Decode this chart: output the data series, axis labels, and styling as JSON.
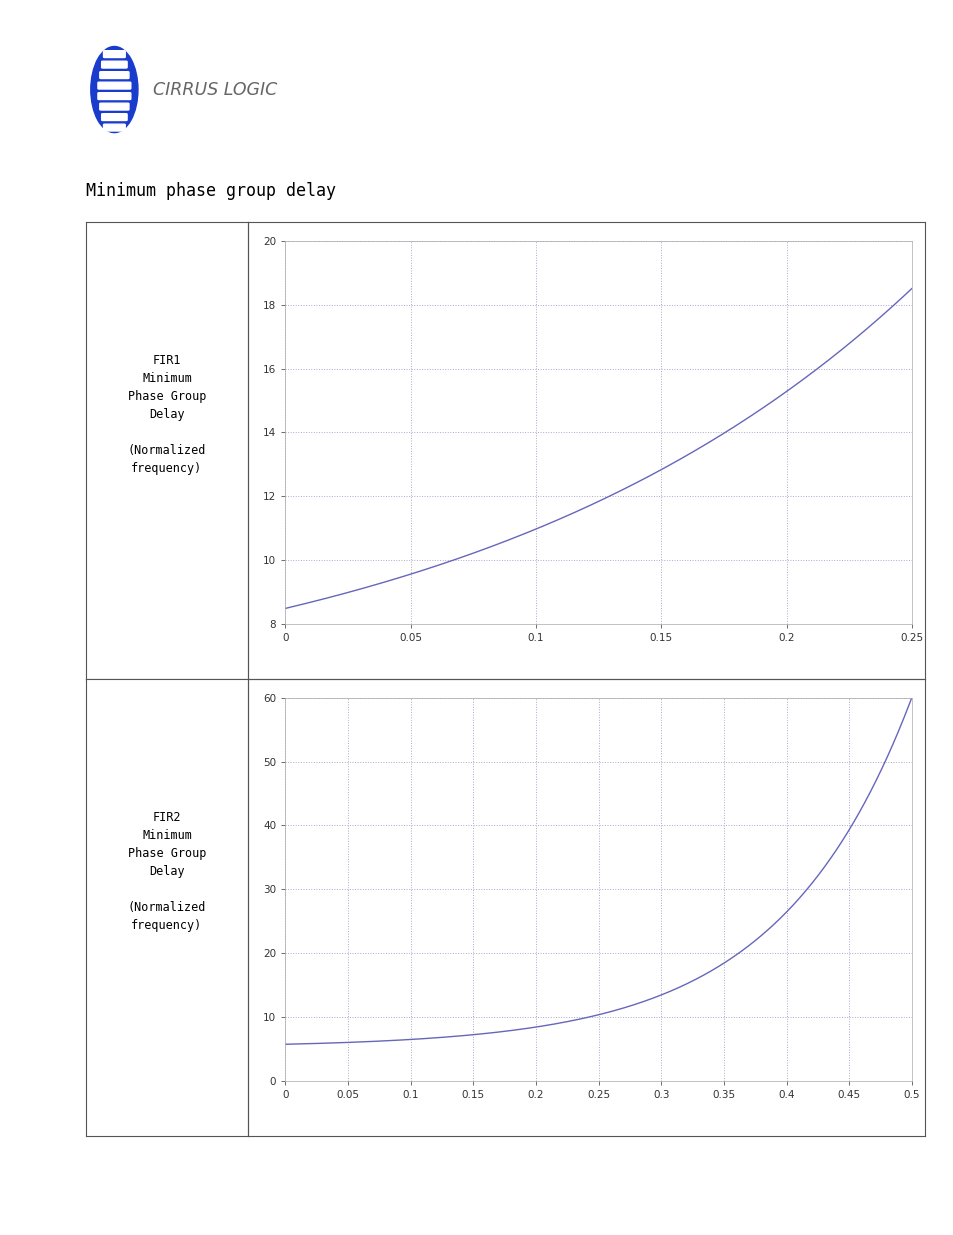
{
  "title": "Minimum phase group delay",
  "title_fontsize": 12,
  "page_bg": "#ffffff",
  "header_bar_color": "#888888",
  "table_border_color": "#555555",
  "plot1": {
    "label_text": "FIR1\nMinimum\nPhase Group\nDelay\n\n(Normalized\nfrequency)",
    "xmin": 0,
    "xmax": 0.25,
    "ymin": 8,
    "ymax": 20,
    "xticks": [
      0,
      0.05,
      0.1,
      0.15,
      0.2,
      0.25
    ],
    "yticks": [
      8,
      10,
      12,
      14,
      16,
      18,
      20
    ],
    "line_color": "#6666bb",
    "grid_color": "#aaaacc",
    "grid_style": ":"
  },
  "plot2": {
    "label_text": "FIR2\nMinimum\nPhase Group\nDelay\n\n(Normalized\nfrequency)",
    "xmin": 0,
    "xmax": 0.5,
    "ymin": 0,
    "ymax": 60,
    "xticks": [
      0,
      0.05,
      0.1,
      0.15,
      0.2,
      0.25,
      0.3,
      0.35,
      0.4,
      0.45,
      0.5
    ],
    "yticks": [
      0,
      10,
      20,
      30,
      40,
      50,
      60
    ],
    "line_color": "#6666bb",
    "grid_color": "#aaaacc",
    "grid_style": ":"
  },
  "cirrus_logic_bar_color": "#888888",
  "font_mono": "monospace"
}
